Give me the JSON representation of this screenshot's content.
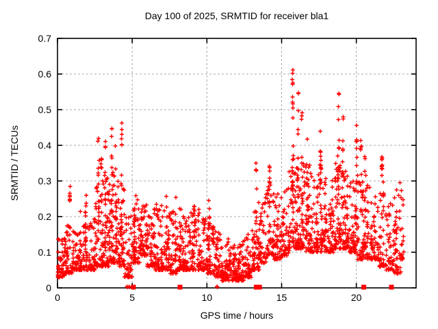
{
  "chart": {
    "title": "Day 100 of 2025, SRMTID for receiver bla1",
    "xlabel": "GPS time / hours",
    "ylabel": "SRMTID / TECUs"
  },
  "colors": {
    "marker": "#ff0000",
    "grid": "#a8a8a8",
    "axis": "#000000",
    "background": "#ffffff"
  },
  "chart_data": {
    "type": "scatter",
    "title": "Day 100 of 2025, SRMTID for receiver bla1",
    "xlabel": "GPS time / hours",
    "ylabel": "SRMTID / TECUs",
    "marker": "plus",
    "marker_color": "#ff0000",
    "grid": "dashed",
    "legend": "none",
    "xlim": [
      0,
      24
    ],
    "ylim": [
      0,
      0.7
    ],
    "x_ticks": [
      0,
      5,
      10,
      15,
      20
    ],
    "x_tick_labels": [
      "0",
      "5",
      "10",
      "15",
      "20"
    ],
    "y_ticks": [
      0,
      0.1,
      0.2,
      0.3,
      0.4,
      0.5,
      0.6,
      0.7
    ],
    "y_tick_labels": [
      "0",
      "0.1",
      "0.2",
      "0.3",
      "0.4",
      "0.5",
      "0.6",
      "0.7"
    ],
    "y_max_observed": 0.66,
    "y_max_observed_hour": 15.75,
    "seed": 11,
    "density_bins": [
      [
        0.0,
        0.03,
        0.14,
        55
      ],
      [
        0.5,
        0.04,
        0.19,
        50
      ],
      [
        1.0,
        0.05,
        0.16,
        48
      ],
      [
        1.5,
        0.05,
        0.22,
        50
      ],
      [
        2.0,
        0.05,
        0.2,
        50
      ],
      [
        2.5,
        0.06,
        0.3,
        55
      ],
      [
        3.0,
        0.06,
        0.32,
        60
      ],
      [
        3.5,
        0.07,
        0.33,
        60
      ],
      [
        4.0,
        0.06,
        0.3,
        55
      ],
      [
        4.5,
        0.03,
        0.22,
        48
      ],
      [
        5.0,
        0.07,
        0.26,
        50
      ],
      [
        5.5,
        0.09,
        0.24,
        50
      ],
      [
        6.0,
        0.06,
        0.22,
        50
      ],
      [
        6.5,
        0.05,
        0.24,
        50
      ],
      [
        7.0,
        0.05,
        0.22,
        50
      ],
      [
        7.5,
        0.04,
        0.22,
        50
      ],
      [
        8.0,
        0.05,
        0.24,
        50
      ],
      [
        8.5,
        0.05,
        0.22,
        48
      ],
      [
        9.0,
        0.05,
        0.23,
        48
      ],
      [
        9.5,
        0.05,
        0.2,
        48
      ],
      [
        10.0,
        0.04,
        0.2,
        48
      ],
      [
        10.5,
        0.03,
        0.16,
        50
      ],
      [
        11.0,
        0.02,
        0.14,
        55
      ],
      [
        11.5,
        0.02,
        0.12,
        55
      ],
      [
        12.0,
        0.02,
        0.13,
        55
      ],
      [
        12.5,
        0.03,
        0.15,
        50
      ],
      [
        13.0,
        0.05,
        0.24,
        50
      ],
      [
        13.5,
        0.07,
        0.28,
        50
      ],
      [
        14.0,
        0.09,
        0.3,
        50
      ],
      [
        14.5,
        0.08,
        0.28,
        48
      ],
      [
        15.0,
        0.09,
        0.28,
        45
      ],
      [
        15.5,
        0.11,
        0.35,
        50
      ],
      [
        16.0,
        0.11,
        0.35,
        55
      ],
      [
        16.5,
        0.1,
        0.35,
        55
      ],
      [
        17.0,
        0.1,
        0.32,
        55
      ],
      [
        17.5,
        0.1,
        0.35,
        55
      ],
      [
        18.0,
        0.1,
        0.32,
        55
      ],
      [
        18.5,
        0.11,
        0.35,
        55
      ],
      [
        19.0,
        0.11,
        0.35,
        55
      ],
      [
        19.5,
        0.1,
        0.3,
        55
      ],
      [
        20.0,
        0.08,
        0.32,
        50
      ],
      [
        20.5,
        0.08,
        0.3,
        50
      ],
      [
        21.0,
        0.08,
        0.28,
        50
      ],
      [
        21.5,
        0.06,
        0.3,
        48
      ],
      [
        22.0,
        0.05,
        0.25,
        45
      ],
      [
        22.5,
        0.04,
        0.3,
        42
      ],
      [
        23.0,
        0.08,
        0.3,
        15,
        0.15
      ]
    ],
    "spike_columns": [
      [
        0.82,
        0.1,
        0.3,
        10
      ],
      [
        1.9,
        0.08,
        0.28,
        9
      ],
      [
        2.75,
        0.1,
        0.42,
        13
      ],
      [
        2.95,
        0.1,
        0.38,
        9
      ],
      [
        3.2,
        0.1,
        0.42,
        11
      ],
      [
        3.62,
        0.12,
        0.46,
        13
      ],
      [
        3.9,
        0.1,
        0.4,
        9
      ],
      [
        4.3,
        0.15,
        0.47,
        13
      ],
      [
        5.15,
        0.1,
        0.29,
        8
      ],
      [
        6.45,
        0.1,
        0.3,
        8
      ],
      [
        7.3,
        0.08,
        0.28,
        7
      ],
      [
        7.9,
        0.1,
        0.3,
        7
      ],
      [
        9.15,
        0.12,
        0.23,
        7
      ],
      [
        10.15,
        0.1,
        0.25,
        8
      ],
      [
        13.3,
        0.1,
        0.35,
        11
      ],
      [
        14.2,
        0.15,
        0.35,
        9
      ],
      [
        15.75,
        0.2,
        0.66,
        20
      ],
      [
        16.1,
        0.2,
        0.55,
        13
      ],
      [
        16.35,
        0.15,
        0.5,
        11
      ],
      [
        16.7,
        0.15,
        0.42,
        9
      ],
      [
        17.6,
        0.2,
        0.45,
        9
      ],
      [
        18.8,
        0.25,
        0.56,
        15
      ],
      [
        19.1,
        0.2,
        0.5,
        9
      ],
      [
        20.0,
        0.25,
        0.47,
        9
      ],
      [
        20.3,
        0.2,
        0.42,
        7
      ],
      [
        20.6,
        0.15,
        0.4,
        7
      ],
      [
        21.7,
        0.3,
        0.38,
        11
      ],
      [
        22.7,
        0.05,
        0.3,
        9
      ]
    ],
    "zero_squares_hours": [
      5.08,
      8.2,
      13.3,
      13.52,
      20.5,
      22.35
    ],
    "near_zero_plus_hours": [
      4.65,
      4.78,
      10.67
    ]
  }
}
